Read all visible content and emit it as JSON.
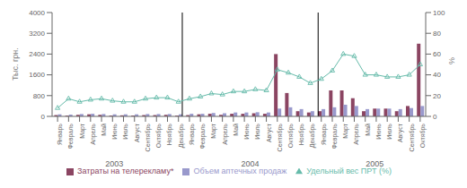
{
  "chart_data": {
    "type": "bar",
    "categories": [
      "Январь",
      "Февраль",
      "Март",
      "Апрель",
      "Май",
      "Июнь",
      "Июль",
      "Август",
      "Сентябрь",
      "Октябрь",
      "Ноябрь",
      "Декабрь",
      "Январь",
      "Февраль",
      "Март",
      "Апрель",
      "Май",
      "Июнь",
      "Июль",
      "Август",
      "Сентябрь",
      "Октябрь",
      "Ноябрь",
      "Декабрь",
      "Январь",
      "Февраль",
      "Март",
      "Апрель",
      "Май",
      "Июнь",
      "Июль",
      "Август",
      "Сентябрь",
      "Октябрь"
    ],
    "category_groups": [
      {
        "label": "2003",
        "size": 12
      },
      {
        "label": "2004",
        "size": 12
      },
      {
        "label": "2005",
        "size": 10
      }
    ],
    "series": [
      {
        "name": "Затраты на телерекламу*",
        "color": "#8B4562",
        "values": [
          50,
          30,
          60,
          80,
          60,
          30,
          40,
          30,
          50,
          50,
          60,
          30,
          50,
          80,
          100,
          60,
          100,
          100,
          120,
          100,
          2400,
          900,
          200,
          150,
          200,
          1000,
          1000,
          700,
          200,
          300,
          300,
          200,
          400,
          2800
        ]
      },
      {
        "name": "Объем аптечных продаж",
        "color": "#9999CC",
        "values": [
          80,
          70,
          90,
          100,
          90,
          80,
          80,
          80,
          90,
          90,
          90,
          80,
          100,
          100,
          130,
          120,
          150,
          150,
          160,
          150,
          300,
          350,
          280,
          200,
          280,
          350,
          450,
          400,
          280,
          300,
          300,
          280,
          320,
          400
        ]
      },
      {
        "name": "Удельный вес ПРТ (%)",
        "type": "line",
        "axis": "y2",
        "color": "#66BBAA",
        "marker": "triangle",
        "values": [
          8,
          17,
          14,
          16,
          17,
          15,
          14,
          14,
          17,
          18,
          18,
          14,
          17,
          19,
          22,
          21,
          24,
          24,
          26,
          25,
          45,
          42,
          38,
          32,
          36,
          44,
          60,
          58,
          40,
          40,
          38,
          38,
          40,
          50
        ]
      }
    ],
    "ylabel": "Тыс. грн.",
    "y2label": "%",
    "ylim": [
      0,
      4000
    ],
    "yticks": [
      0,
      800,
      1600,
      2400,
      3200,
      4000
    ],
    "y2lim": [
      0,
      100
    ],
    "y2ticks": [
      0,
      20,
      40,
      60,
      80,
      100
    ],
    "legend": "bottom",
    "grid": false
  }
}
